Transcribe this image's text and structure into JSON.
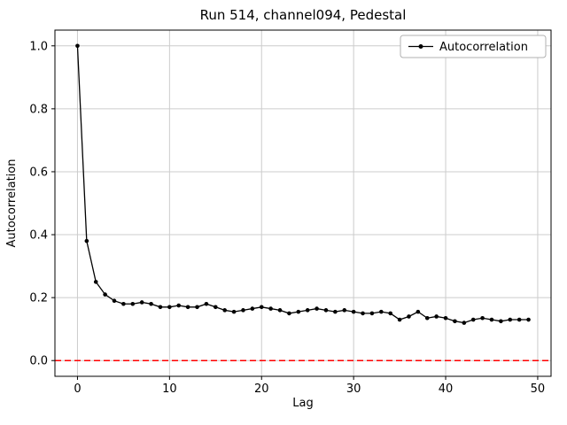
{
  "chart_data": {
    "type": "line",
    "title": "Run 514, channel094, Pedestal",
    "xlabel": "Lag",
    "ylabel": "Autocorrelation",
    "xlim": [
      -2.45,
      51.45
    ],
    "ylim": [
      -0.05,
      1.05
    ],
    "x_ticks": [
      0,
      10,
      20,
      30,
      40,
      50
    ],
    "y_ticks": [
      0.0,
      0.2,
      0.4,
      0.6,
      0.8,
      1.0
    ],
    "grid": true,
    "legend_position": "upper right",
    "line_color": "#000000",
    "marker_shape": "circle",
    "zero_line": {
      "y": 0,
      "color": "#ff0000",
      "style": "dashed"
    },
    "x": [
      0,
      1,
      2,
      3,
      4,
      5,
      6,
      7,
      8,
      9,
      10,
      11,
      12,
      13,
      14,
      15,
      16,
      17,
      18,
      19,
      20,
      21,
      22,
      23,
      24,
      25,
      26,
      27,
      28,
      29,
      30,
      31,
      32,
      33,
      34,
      35,
      36,
      37,
      38,
      39,
      40,
      41,
      42,
      43,
      44,
      45,
      46,
      47,
      48,
      49
    ],
    "series": [
      {
        "name": "Autocorrelation",
        "values": [
          1.0,
          0.38,
          0.25,
          0.21,
          0.19,
          0.18,
          0.18,
          0.185,
          0.18,
          0.17,
          0.17,
          0.175,
          0.17,
          0.17,
          0.18,
          0.17,
          0.16,
          0.155,
          0.16,
          0.165,
          0.17,
          0.165,
          0.16,
          0.15,
          0.155,
          0.16,
          0.165,
          0.16,
          0.155,
          0.16,
          0.155,
          0.15,
          0.15,
          0.155,
          0.15,
          0.13,
          0.14,
          0.155,
          0.135,
          0.14,
          0.135,
          0.125,
          0.12,
          0.13,
          0.135,
          0.13,
          0.125,
          0.13,
          0.13,
          0.13
        ]
      }
    ]
  }
}
